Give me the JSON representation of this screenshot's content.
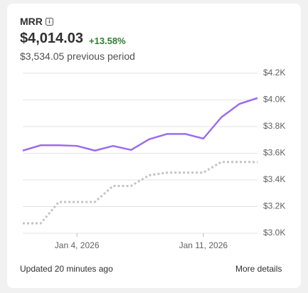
{
  "card": {
    "title": "MRR",
    "value": "$4,014.03",
    "change": "+13.58%",
    "previous": "$3,534.05 previous period",
    "updated": "Updated 20 minutes ago",
    "link": "More details"
  },
  "chart_data": {
    "type": "line",
    "categories": [
      null,
      null,
      null,
      "Jan 4, 2026",
      null,
      null,
      null,
      null,
      null,
      null,
      "Jan 11, 2026",
      null,
      null,
      null
    ],
    "series": [
      {
        "color": "#9b6cf0",
        "values": [
          3620,
          3660,
          3660,
          3655,
          3620,
          3655,
          3625,
          3705,
          3745,
          3745,
          3710,
          3870,
          3970,
          4014.03
        ]
      },
      {
        "color": "#c4c4c4",
        "dash": true,
        "values": [
          3075,
          3075,
          3235,
          3235,
          3235,
          3355,
          3355,
          3435,
          3455,
          3455,
          3455,
          3535,
          3535,
          3534.05
        ]
      }
    ],
    "ylim": [
      3000,
      4200
    ],
    "yticks": [
      {
        "value": 3000,
        "label": "$3.0K"
      },
      {
        "value": 3200,
        "label": "$3.2K"
      },
      {
        "value": 3400,
        "label": "$3.4K"
      },
      {
        "value": 3600,
        "label": "$3.6K"
      },
      {
        "value": 3800,
        "label": "$3.8K"
      },
      {
        "value": 4000,
        "label": "$4.0K"
      },
      {
        "value": 4200,
        "label": "$4.2K"
      }
    ],
    "grid": true
  }
}
